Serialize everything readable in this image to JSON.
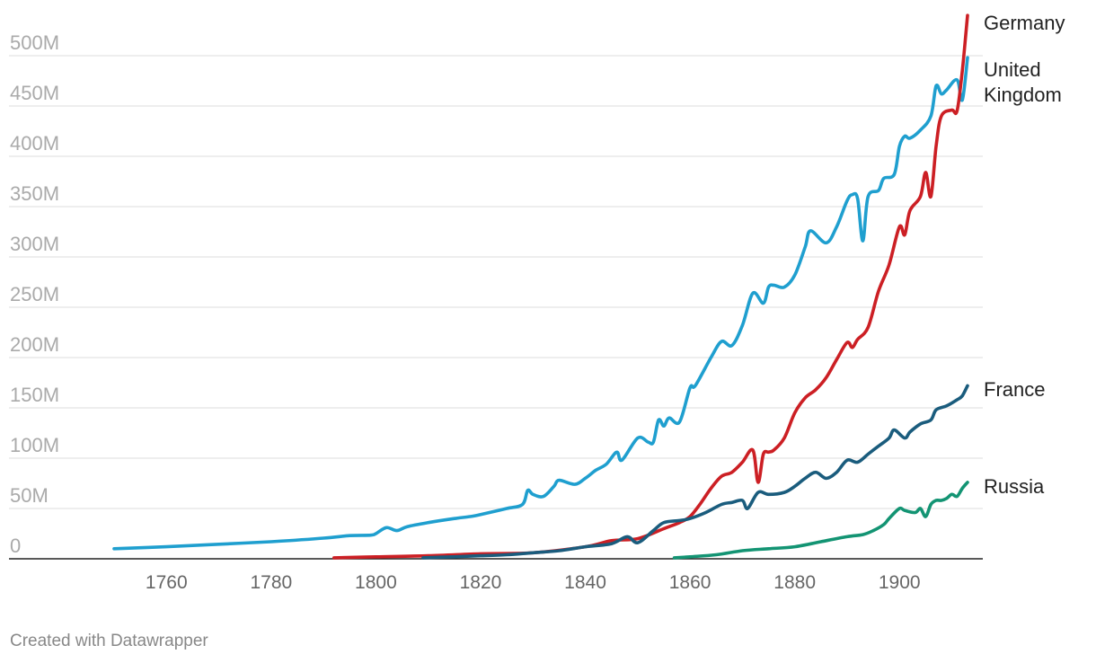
{
  "credit": "Created with Datawrapper",
  "chart_data": {
    "type": "line",
    "title": "",
    "xlabel": "",
    "ylabel": "",
    "xlim": [
      1750,
      1913
    ],
    "ylim": [
      0,
      500000000
    ],
    "x_ticks": [
      "1760",
      "1780",
      "1800",
      "1820",
      "1840",
      "1860",
      "1880",
      "1900"
    ],
    "y_ticks": [
      "0",
      "50M",
      "100M",
      "150M",
      "200M",
      "250M",
      "300M",
      "350M",
      "400M",
      "450M",
      "500M"
    ],
    "grid": true,
    "legend": "direct labels at line ends (right)",
    "series": [
      {
        "name": "United Kingdom",
        "label_lines": [
          "United",
          "Kingdom"
        ],
        "color": "#1f9fcf",
        "x": [
          1750,
          1760,
          1770,
          1780,
          1790,
          1795,
          1799,
          1800,
          1802,
          1804,
          1806,
          1810,
          1815,
          1818,
          1820,
          1825,
          1828,
          1829,
          1830,
          1832,
          1834,
          1835,
          1838,
          1840,
          1842,
          1844,
          1846,
          1847,
          1850,
          1852,
          1853,
          1854,
          1855,
          1856,
          1858,
          1860,
          1861,
          1864,
          1866,
          1868,
          1870,
          1872,
          1874,
          1875,
          1876,
          1878,
          1880,
          1882,
          1883,
          1886,
          1888,
          1890,
          1891,
          1892,
          1893,
          1894,
          1896,
          1897,
          1899,
          1900,
          1901,
          1902,
          1904,
          1906,
          1907,
          1908,
          1909,
          1911,
          1912,
          1913
        ],
        "y": [
          10000000.0,
          12000000.0,
          14500000.0,
          17000000.0,
          20500000.0,
          23000000.0,
          23500000.0,
          25000000.0,
          31000000.0,
          28000000.0,
          32000000.0,
          36000000.0,
          40000000.0,
          42000000.0,
          44000000.0,
          50000000.0,
          54000000.0,
          68000000.0,
          64000000.0,
          62000000.0,
          72000000.0,
          78000000.0,
          74000000.0,
          80000000.0,
          88000000.0,
          94000000.0,
          106000000.0,
          98000000.0,
          120000000.0,
          116000000.0,
          116000000.0,
          138000000.0,
          132000000.0,
          140000000.0,
          136000000.0,
          170000000.0,
          172000000.0,
          200000000.0,
          216000000.0,
          212000000.0,
          232000000.0,
          264000000.0,
          254000000.0,
          270000000.0,
          272000000.0,
          270000000.0,
          282000000.0,
          310000000.0,
          326000000.0,
          314000000.0,
          330000000.0,
          356000000.0,
          362000000.0,
          358000000.0,
          316000000.0,
          360000000.0,
          366000000.0,
          378000000.0,
          382000000.0,
          410000000.0,
          420000000.0,
          418000000.0,
          426000000.0,
          440000000.0,
          470000000.0,
          462000000.0,
          466000000.0,
          476000000.0,
          456000000.0,
          498000000.0
        ]
      },
      {
        "name": "Germany",
        "label_lines": [
          "Germany"
        ],
        "color": "#cc1f24",
        "x": [
          1792,
          1800,
          1810,
          1820,
          1830,
          1840,
          1845,
          1850,
          1855,
          1858,
          1860,
          1862,
          1864,
          1866,
          1868,
          1870,
          1872,
          1873,
          1874,
          1875,
          1876,
          1878,
          1880,
          1882,
          1884,
          1886,
          1888,
          1890,
          1891,
          1892,
          1894,
          1896,
          1898,
          1900,
          1901,
          1902,
          1904,
          1905,
          1906,
          1907,
          1908,
          1910,
          1911,
          1912,
          1913
        ],
        "y": [
          1000000.0,
          2000000.0,
          3000000.0,
          5000000.0,
          6000000.0,
          12000000.0,
          18000000.0,
          20000000.0,
          30000000.0,
          36000000.0,
          42000000.0,
          55000000.0,
          70000000.0,
          82000000.0,
          86000000.0,
          96000000.0,
          108000000.0,
          76000000.0,
          104000000.0,
          106000000.0,
          108000000.0,
          120000000.0,
          145000000.0,
          160000000.0,
          168000000.0,
          180000000.0,
          198000000.0,
          215000000.0,
          210000000.0,
          218000000.0,
          230000000.0,
          266000000.0,
          292000000.0,
          330000000.0,
          322000000.0,
          346000000.0,
          360000000.0,
          384000000.0,
          360000000.0,
          410000000.0,
          440000000.0,
          446000000.0,
          445000000.0,
          485000000.0,
          540000000.0
        ]
      },
      {
        "name": "France",
        "label_lines": [
          "France"
        ],
        "color": "#1a5c7d",
        "x": [
          1809,
          1815,
          1820,
          1825,
          1830,
          1835,
          1840,
          1845,
          1848,
          1850,
          1853,
          1855,
          1858,
          1860,
          1863,
          1866,
          1868,
          1870,
          1871,
          1873,
          1875,
          1878,
          1880,
          1882,
          1884,
          1886,
          1888,
          1890,
          1892,
          1894,
          1896,
          1898,
          1899,
          1901,
          1902,
          1904,
          1906,
          1907,
          1909,
          1911,
          1912,
          1913
        ],
        "y": [
          1000000.0,
          2000000.0,
          3000000.0,
          4000000.0,
          6000000.0,
          8000000.0,
          12000000.0,
          15000000.0,
          22000000.0,
          16000000.0,
          28000000.0,
          36000000.0,
          38000000.0,
          40000000.0,
          46000000.0,
          54000000.0,
          56000000.0,
          58000000.0,
          50000000.0,
          66000000.0,
          64000000.0,
          66000000.0,
          72000000.0,
          80000000.0,
          86000000.0,
          80000000.0,
          86000000.0,
          98000000.0,
          96000000.0,
          104000000.0,
          112000000.0,
          120000000.0,
          128000000.0,
          120000000.0,
          126000000.0,
          134000000.0,
          138000000.0,
          148000000.0,
          152000000.0,
          158000000.0,
          162000000.0,
          172000000.0
        ]
      },
      {
        "name": "Russia",
        "label_lines": [
          "Russia"
        ],
        "color": "#139473",
        "x": [
          1857,
          1860,
          1865,
          1870,
          1875,
          1880,
          1885,
          1890,
          1893,
          1895,
          1897,
          1898,
          1900,
          1901,
          1903,
          1904,
          1905,
          1906,
          1907,
          1908,
          1909,
          1910,
          1911,
          1912,
          1913
        ],
        "y": [
          1000000.0,
          2000000.0,
          4000000.0,
          8000000.0,
          10000000.0,
          12000000.0,
          17000000.0,
          22000000.0,
          24000000.0,
          28000000.0,
          34000000.0,
          40000000.0,
          50000000.0,
          48000000.0,
          46000000.0,
          50000000.0,
          42000000.0,
          54000000.0,
          58000000.0,
          58000000.0,
          60000000.0,
          64000000.0,
          62000000.0,
          70000000.0,
          76000000.0
        ]
      }
    ]
  }
}
